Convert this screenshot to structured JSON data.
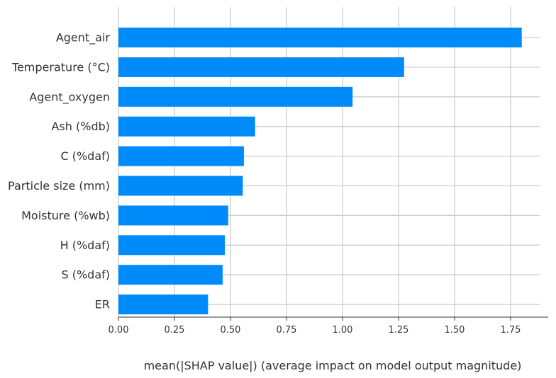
{
  "chart_data": {
    "type": "bar",
    "orientation": "horizontal",
    "categories": [
      "Agent_air",
      "Temperature (°C)",
      "Agent_oxygen",
      "Ash (%db)",
      "C (%daf)",
      "Particle size (mm)",
      "Moisture (%wb)",
      "H (%daf)",
      "S (%daf)",
      "ER"
    ],
    "values": [
      1.8,
      1.275,
      1.045,
      0.61,
      0.56,
      0.555,
      0.49,
      0.475,
      0.465,
      0.4
    ],
    "xlabel": "mean(|SHAP value|) (average impact on model output magnitude)",
    "ylabel": "",
    "title": "",
    "xlim": [
      0,
      1.88
    ],
    "xticks": [
      "0.00",
      "0.25",
      "0.50",
      "0.75",
      "1.00",
      "1.25",
      "1.50",
      "1.75"
    ],
    "xtick_values": [
      0,
      0.25,
      0.5,
      0.75,
      1.0,
      1.25,
      1.5,
      1.75
    ],
    "grid": true,
    "bar_color": "#008bfb"
  }
}
